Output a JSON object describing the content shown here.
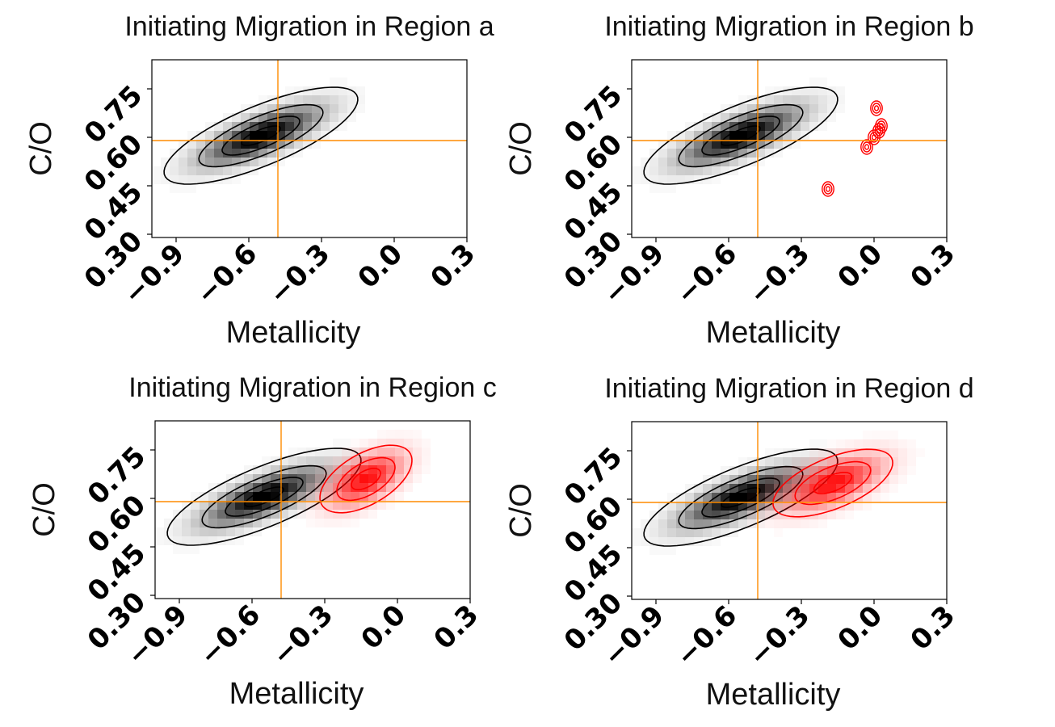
{
  "colors": {
    "reference_line": "#ff8c00",
    "black_population": "#000000",
    "red_population": "#ff0000",
    "frame": "#000000"
  },
  "chart_data": [
    {
      "type": "heatmap",
      "title": "Initiating Migration in Region a",
      "xlabel": "Metallicity",
      "ylabel": "C/O",
      "x_ticks": [
        "−0.9",
        "−0.6",
        "−0.3",
        "0.0",
        "0.3"
      ],
      "y_ticks": [
        "0.30",
        "0.45",
        "0.60",
        "0.75"
      ],
      "xlim": [
        -1.0,
        0.3
      ],
      "ylim": [
        0.29,
        0.84
      ],
      "reference_lines": {
        "x": -0.48,
        "y": 0.59
      },
      "series": [
        {
          "name": "black",
          "color": "#000000",
          "center": [
            -0.55,
            0.605
          ],
          "spread": [
            0.16,
            0.06
          ],
          "corr": 0.75,
          "contour_sigmas": [
            0.5,
            1,
            1.6,
            2.5
          ]
        }
      ]
    },
    {
      "type": "heatmap",
      "title": "Initiating Migration in Region b",
      "xlabel": "Metallicity",
      "ylabel": "C/O",
      "x_ticks": [
        "−0.9",
        "−0.6",
        "−0.3",
        "0.0",
        "0.3"
      ],
      "y_ticks": [
        "0.30",
        "0.45",
        "0.60",
        "0.75"
      ],
      "xlim": [
        -1.0,
        0.3
      ],
      "ylim": [
        0.29,
        0.84
      ],
      "reference_lines": {
        "x": -0.48,
        "y": 0.59
      },
      "series": [
        {
          "name": "black",
          "color": "#000000",
          "center": [
            -0.55,
            0.605
          ],
          "spread": [
            0.16,
            0.06
          ],
          "corr": 0.75,
          "contour_sigmas": [
            0.5,
            1,
            1.6,
            2.5
          ]
        },
        {
          "name": "red_clusters",
          "color": "#ff0000",
          "points": [
            [
              0.02,
              0.62
            ],
            [
              0.0,
              0.6
            ],
            [
              -0.03,
              0.57
            ],
            [
              0.01,
              0.69
            ],
            [
              -0.19,
              0.44
            ],
            [
              0.03,
              0.635
            ]
          ]
        }
      ]
    },
    {
      "type": "heatmap",
      "title": "Initiating Migration in Region c",
      "xlabel": "Metallicity",
      "ylabel": "C/O",
      "x_ticks": [
        "−0.9",
        "−0.6",
        "−0.3",
        "0.0",
        "0.3"
      ],
      "y_ticks": [
        "0.30",
        "0.45",
        "0.60",
        "0.75"
      ],
      "xlim": [
        -1.0,
        0.3
      ],
      "ylim": [
        0.29,
        0.84
      ],
      "reference_lines": {
        "x": -0.48,
        "y": 0.59
      },
      "series": [
        {
          "name": "black",
          "color": "#000000",
          "center": [
            -0.55,
            0.605
          ],
          "spread": [
            0.16,
            0.06
          ],
          "corr": 0.75,
          "contour_sigmas": [
            0.5,
            1,
            1.6,
            2.5
          ]
        },
        {
          "name": "red",
          "color": "#ff0000",
          "center": [
            -0.13,
            0.66
          ],
          "spread": [
            0.1,
            0.055
          ],
          "corr": 0.55,
          "contour_sigmas": [
            0.6,
            1.2,
            1.9
          ]
        }
      ]
    },
    {
      "type": "heatmap",
      "title": "Initiating Migration in Region d",
      "xlabel": "Metallicity",
      "ylabel": "C/O",
      "x_ticks": [
        "−0.9",
        "−0.6",
        "−0.3",
        "0.0",
        "0.3"
      ],
      "y_ticks": [
        "0.30",
        "0.45",
        "0.60",
        "0.75"
      ],
      "xlim": [
        -1.0,
        0.3
      ],
      "ylim": [
        0.29,
        0.84
      ],
      "reference_lines": {
        "x": -0.48,
        "y": 0.59
      },
      "series": [
        {
          "name": "black",
          "color": "#000000",
          "center": [
            -0.55,
            0.605
          ],
          "spread": [
            0.16,
            0.06
          ],
          "corr": 0.75,
          "contour_sigmas": [
            0.5,
            1,
            1.6,
            2.5
          ]
        },
        {
          "name": "red",
          "color": "#ff0000",
          "center": [
            -0.17,
            0.65
          ],
          "spread": [
            0.13,
            0.055
          ],
          "corr": 0.6,
          "contour_sigmas": [
            0.6,
            1.2,
            1.9
          ]
        }
      ]
    }
  ]
}
